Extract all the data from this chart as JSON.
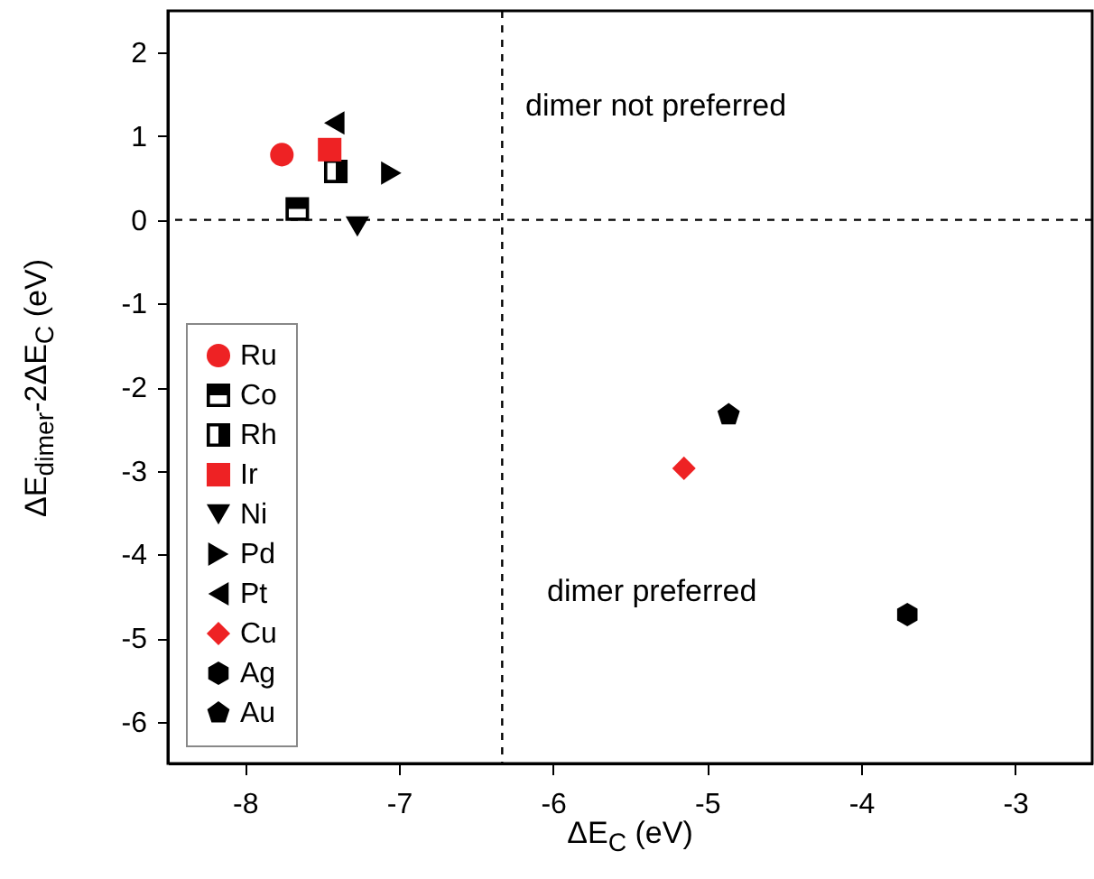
{
  "chart_data": {
    "type": "scatter",
    "xlabel": "ΔE$_{C}$  (eV)",
    "ylabel": "ΔE$_{dimer}$-2ΔE$_{C}$ (eV)",
    "xlim": [
      -8.5,
      -2.5
    ],
    "xticks": [
      -8,
      -7,
      -6,
      -5,
      -4,
      -3
    ],
    "ylim": [
      -6.5,
      2.5
    ],
    "yticks": [
      -6,
      -5,
      -4,
      -3,
      -2,
      -1,
      0,
      1,
      2
    ],
    "grid": false,
    "legend": "bottom left",
    "ref_lines": [
      {
        "axis": "x",
        "value": -6.33,
        "label": null,
        "line_style": "dashed",
        "color": "#000000"
      },
      {
        "axis": "y",
        "value": 0,
        "label": null,
        "line_style": "dashed",
        "color": "#000000"
      }
    ],
    "annotations": [
      "dimer not preferred",
      "dimer preferred"
    ],
    "series": [
      {
        "name": "Ru",
        "color": "#ee2224",
        "marker": "circle",
        "x": [
          -7.76
        ],
        "values": [
          0.78
        ]
      },
      {
        "name": "Co",
        "color": "#000000",
        "marker": "square-half-top",
        "x": [
          -7.66
        ],
        "values": [
          0.13
        ]
      },
      {
        "name": "Rh",
        "color": "#000000",
        "marker": "square-half-right",
        "x": [
          -7.41
        ],
        "values": [
          0.58
        ]
      },
      {
        "name": "Ir",
        "color": "#ee2224",
        "marker": "square",
        "x": [
          -7.45
        ],
        "values": [
          0.84
        ]
      },
      {
        "name": "Ni",
        "color": "#000000",
        "marker": "triangle-down",
        "x": [
          -7.27
        ],
        "values": [
          -0.08
        ]
      },
      {
        "name": "Pd",
        "color": "#000000",
        "marker": "triangle-right",
        "x": [
          -7.05
        ],
        "values": [
          0.56
        ]
      },
      {
        "name": "Pt",
        "color": "#000000",
        "marker": "triangle-left",
        "x": [
          -7.42
        ],
        "values": [
          1.16
        ]
      },
      {
        "name": "Cu",
        "color": "#ee2224",
        "marker": "diamond",
        "x": [
          -5.15
        ],
        "values": [
          -2.97
        ]
      },
      {
        "name": "Ag",
        "color": "#000000",
        "x": [
          -3.7
        ],
        "values": [
          -4.72
        ]
      },
      {
        "name": "Au",
        "color": "#000000",
        "x": [
          -4.86
        ],
        "values": [
          -2.33
        ]
      }
    ]
  }
}
